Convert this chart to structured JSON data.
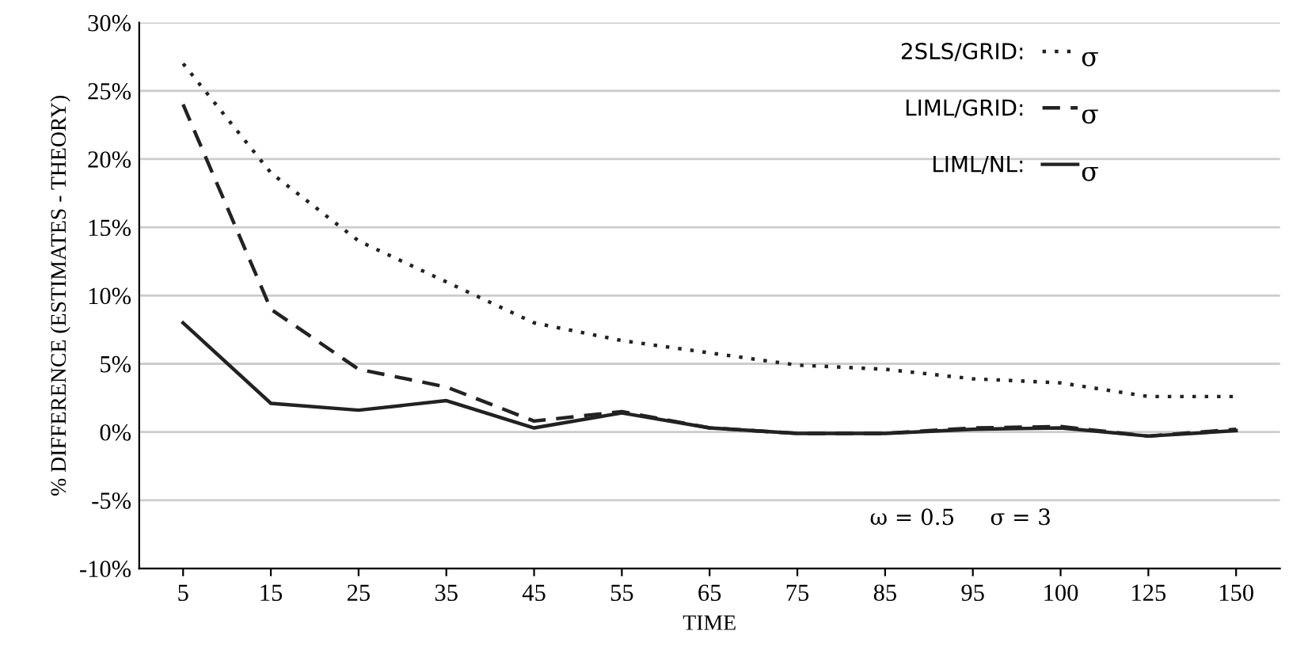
{
  "chart_data": {
    "type": "line",
    "xlabel": "TIME",
    "ylabel": "% DIFFERENCE (ESTIMATES - THEORY)",
    "categories": [
      "5",
      "15",
      "25",
      "35",
      "45",
      "55",
      "65",
      "75",
      "85",
      "95",
      "100",
      "125",
      "150"
    ],
    "series": [
      {
        "name": "2SLS/GRID:",
        "color": "#222222",
        "line_style": "dotted",
        "values": [
          27,
          19,
          14,
          11,
          8,
          6.7,
          5.8,
          4.9,
          4.6,
          3.9,
          3.6,
          2.6,
          2.6
        ]
      },
      {
        "name": "LIML/GRID:",
        "color": "#222222",
        "line_style": "dashed",
        "values": [
          24,
          9,
          4.6,
          3.3,
          0.8,
          1.5,
          0.3,
          -0.1,
          -0.1,
          0.3,
          0.4,
          -0.3,
          0.2
        ]
      },
      {
        "name": "LIML/NL:",
        "color": "#222222",
        "line_style": "solid",
        "values": [
          8,
          2.1,
          1.6,
          2.3,
          0.3,
          1.4,
          0.3,
          -0.1,
          -0.1,
          0.2,
          0.3,
          -0.3,
          0.1
        ]
      }
    ],
    "ylim": [
      -10,
      30
    ],
    "yticks": [
      {
        "value": -10,
        "label": "-10%"
      },
      {
        "value": -5,
        "label": "-5%"
      },
      {
        "value": 0,
        "label": "0%"
      },
      {
        "value": 5,
        "label": "5%"
      },
      {
        "value": 10,
        "label": "10%"
      },
      {
        "value": 15,
        "label": "15%"
      },
      {
        "value": 20,
        "label": "20%"
      },
      {
        "value": 25,
        "label": "25%"
      },
      {
        "value": 30,
        "label": "30%"
      }
    ],
    "grid": "y",
    "legend": "top right",
    "annotations": [
      "σ",
      "σ",
      "σ",
      "ω = 0.5     σ = 3"
    ]
  }
}
